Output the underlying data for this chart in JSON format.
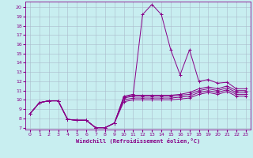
{
  "xlabel": "Windchill (Refroidissement éolien,°C)",
  "bg_color": "#c8eef0",
  "line_color": "#880088",
  "grid_color": "#aabbcc",
  "xlim": [
    -0.5,
    23.5
  ],
  "ylim": [
    6.8,
    20.6
  ],
  "xticks": [
    0,
    1,
    2,
    3,
    4,
    5,
    6,
    7,
    8,
    9,
    10,
    11,
    12,
    13,
    14,
    15,
    16,
    17,
    18,
    19,
    20,
    21,
    22,
    23
  ],
  "yticks": [
    7,
    8,
    9,
    10,
    11,
    12,
    13,
    14,
    15,
    16,
    17,
    18,
    19,
    20
  ],
  "lines": [
    {
      "x": [
        0,
        1,
        2,
        3,
        4,
        5,
        6,
        7,
        8,
        9,
        10,
        11,
        12,
        13,
        14,
        15,
        16,
        17,
        18,
        19,
        20,
        21,
        22,
        23
      ],
      "y": [
        8.5,
        9.7,
        9.9,
        9.9,
        7.9,
        7.8,
        7.8,
        7.0,
        7.0,
        7.5,
        10.4,
        10.6,
        19.2,
        20.3,
        19.2,
        15.4,
        12.7,
        15.4,
        12.0,
        12.2,
        11.8,
        11.9,
        11.2,
        11.2
      ]
    },
    {
      "x": [
        0,
        1,
        2,
        3,
        4,
        5,
        6,
        7,
        8,
        9,
        10,
        11,
        12,
        13,
        14,
        15,
        16,
        17,
        18,
        19,
        20,
        21,
        22,
        23
      ],
      "y": [
        8.5,
        9.7,
        9.9,
        9.9,
        7.9,
        7.8,
        7.8,
        7.0,
        7.0,
        7.5,
        10.3,
        10.5,
        10.5,
        10.5,
        10.5,
        10.5,
        10.6,
        10.8,
        11.2,
        11.4,
        11.2,
        11.5,
        11.0,
        11.0
      ]
    },
    {
      "x": [
        0,
        1,
        2,
        3,
        4,
        5,
        6,
        7,
        8,
        9,
        10,
        11,
        12,
        13,
        14,
        15,
        16,
        17,
        18,
        19,
        20,
        21,
        22,
        23
      ],
      "y": [
        8.5,
        9.7,
        9.9,
        9.9,
        7.9,
        7.8,
        7.8,
        7.0,
        7.0,
        7.5,
        10.2,
        10.4,
        10.4,
        10.4,
        10.4,
        10.4,
        10.5,
        10.6,
        11.0,
        11.2,
        11.0,
        11.3,
        10.8,
        10.8
      ]
    },
    {
      "x": [
        0,
        1,
        2,
        3,
        4,
        5,
        6,
        7,
        8,
        9,
        10,
        11,
        12,
        13,
        14,
        15,
        16,
        17,
        18,
        19,
        20,
        21,
        22,
        23
      ],
      "y": [
        8.5,
        9.7,
        9.9,
        9.9,
        7.9,
        7.8,
        7.8,
        7.0,
        7.0,
        7.5,
        10.0,
        10.2,
        10.2,
        10.2,
        10.2,
        10.2,
        10.3,
        10.4,
        10.8,
        11.0,
        10.8,
        11.1,
        10.6,
        10.6
      ]
    },
    {
      "x": [
        0,
        1,
        2,
        3,
        4,
        5,
        6,
        7,
        8,
        9,
        10,
        11,
        12,
        13,
        14,
        15,
        16,
        17,
        18,
        19,
        20,
        21,
        22,
        23
      ],
      "y": [
        8.5,
        9.7,
        9.9,
        9.9,
        7.9,
        7.8,
        7.8,
        7.0,
        7.0,
        7.5,
        9.8,
        10.0,
        10.0,
        10.0,
        10.0,
        10.0,
        10.1,
        10.2,
        10.6,
        10.8,
        10.6,
        10.9,
        10.4,
        10.4
      ]
    }
  ]
}
